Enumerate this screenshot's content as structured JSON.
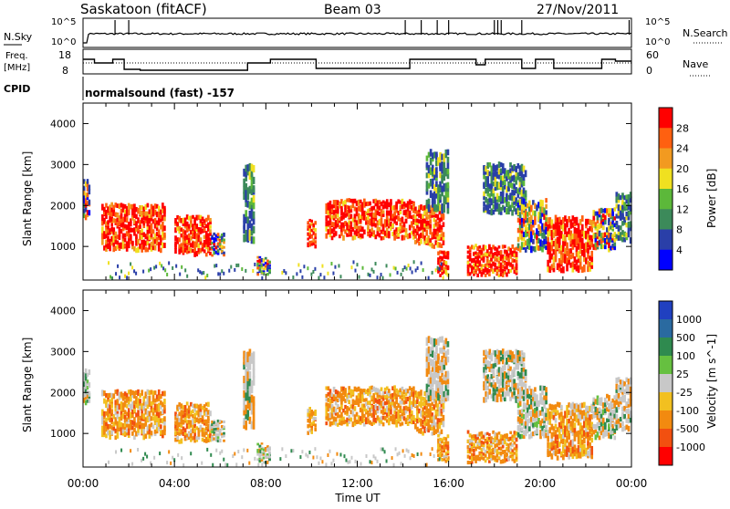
{
  "header": {
    "station": "Saskatoon (fitACF)",
    "beam": "Beam 03",
    "date": "27/Nov/2011"
  },
  "noise_panel": {
    "left_label": "N.Sky",
    "left_tick_top": "10^5",
    "left_tick_bottom": "10^0",
    "right_label": "N.Search",
    "right_tick_top": "10^5",
    "right_tick_bottom": "10^0"
  },
  "freq_panel": {
    "left_label_line1": "Freq.",
    "left_label_line2": "[MHz]",
    "left_ticks": [
      "18",
      "8"
    ],
    "right_label": "Nave",
    "right_ticks": [
      "60",
      "0"
    ]
  },
  "cpid": {
    "label": "CPID",
    "text": "normalsound (fast) -157"
  },
  "x_axis": {
    "label": "Time UT",
    "ticks": [
      "00:00",
      "04:00",
      "08:00",
      "12:00",
      "16:00",
      "20:00",
      "00:00"
    ]
  },
  "chart_data": [
    {
      "type": "heatmap",
      "title": "Power",
      "ylabel": "Slant Range [km]",
      "xlabel": "Time UT",
      "ylim": [
        180,
        4500
      ],
      "yticks": [
        "1000",
        "2000",
        "3000",
        "4000"
      ],
      "x_ticks": [
        "00:00",
        "04:00",
        "08:00",
        "12:00",
        "16:00",
        "20:00",
        "00:00"
      ],
      "colorbar": {
        "label": "Power [dB]",
        "ticks": [
          "4",
          "8",
          "12",
          "16",
          "20",
          "24",
          "28"
        ],
        "colors": [
          "#0000ff",
          "#2a3fa8",
          "#3c8a5a",
          "#5cb83a",
          "#f0e020",
          "#f29a20",
          "#ff6010",
          "#ff0000"
        ]
      }
    },
    {
      "type": "heatmap",
      "title": "Velocity",
      "ylabel": "Slant Range [km]",
      "xlabel": "Time UT",
      "ylim": [
        180,
        4500
      ],
      "yticks": [
        "1000",
        "2000",
        "3000",
        "4000"
      ],
      "x_ticks": [
        "00:00",
        "04:00",
        "08:00",
        "12:00",
        "16:00",
        "20:00",
        "00:00"
      ],
      "colorbar": {
        "label": "Velocity [m s^-1]",
        "ticks": [
          "1000",
          "500",
          "100",
          "25",
          "-25",
          "-100",
          "-500",
          "-1000"
        ],
        "colors": [
          "#2040c0",
          "#2a6aa0",
          "#2f8a4f",
          "#66c040",
          "#c8c8c8",
          "#f2c020",
          "#f28a10",
          "#f25010",
          "#ff0000"
        ]
      }
    }
  ]
}
